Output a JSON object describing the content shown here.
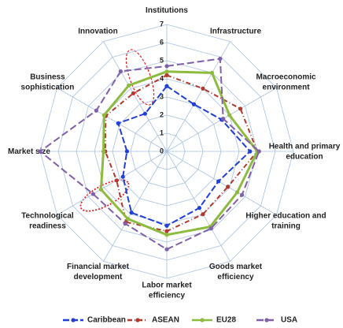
{
  "chart_data": {
    "type": "radar",
    "categories": [
      "Institutions",
      "Infrastructure",
      "Macroeconomic\nenvironment",
      "Health and primary\neducation",
      "Higher education and\ntraining",
      "Goods market\nefficiency",
      "Labor market\nefficiency",
      "Financial market\ndevelopment",
      "Technological\nreadiness",
      "Market size",
      "Business\nsophistication",
      "Innovation"
    ],
    "series": [
      {
        "name": "Caribbean",
        "color": "#1f3fd6",
        "dash": "8 3",
        "values": [
          3.6,
          3.0,
          3.5,
          4.6,
          3.3,
          3.6,
          4.1,
          3.9,
          2.8,
          2.2,
          3.1,
          2.4
        ]
      },
      {
        "name": "ASEAN",
        "color": "#b03a2e",
        "dash": "6 3 1 3",
        "values": [
          4.2,
          4.0,
          4.7,
          5.0,
          3.9,
          4.0,
          4.4,
          4.5,
          3.2,
          3.4,
          3.9,
          3.7
        ]
      },
      {
        "name": "EU28",
        "color": "#8dbb3e",
        "dash": "",
        "values": [
          4.4,
          5.0,
          4.0,
          5.0,
          4.5,
          4.8,
          4.6,
          4.3,
          4.2,
          3.5,
          4.0,
          4.2
        ]
      },
      {
        "name": "USA",
        "color": "#8060a8",
        "dash": "9 4",
        "values": [
          4.7,
          5.9,
          3.6,
          5.1,
          4.8,
          4.9,
          5.4,
          4.6,
          4.7,
          7.0,
          4.5,
          5.1
        ]
      }
    ],
    "rlim": [
      0,
      7
    ],
    "rticks": [
      0,
      1,
      2,
      3,
      4,
      5,
      6,
      7
    ],
    "grid": true,
    "legend": "bottom"
  }
}
